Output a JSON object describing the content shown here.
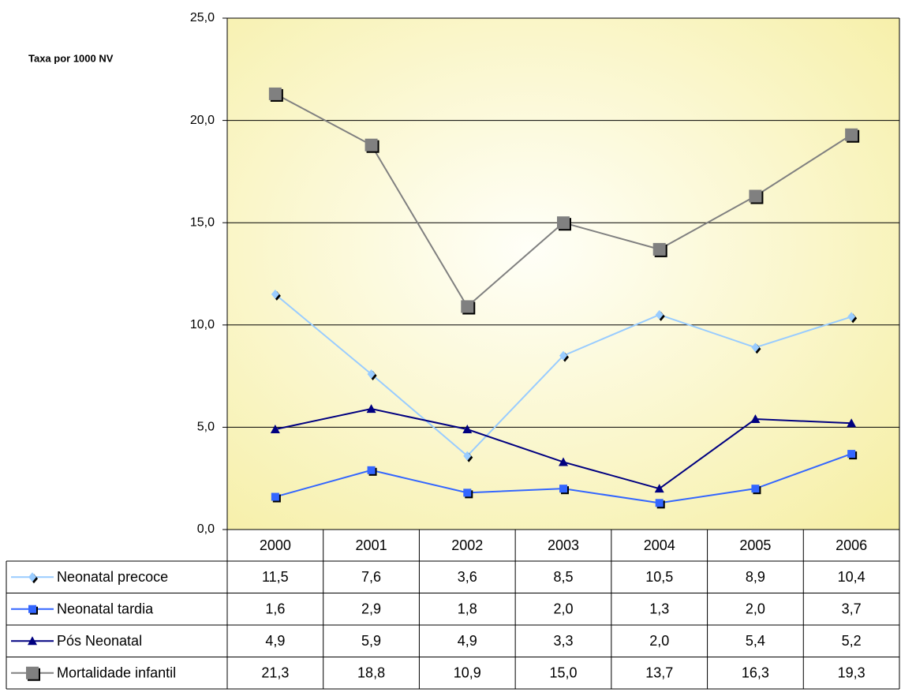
{
  "chart_data": {
    "type": "line",
    "y_label": "Taxa por 1000 NV",
    "categories": [
      "2000",
      "2001",
      "2002",
      "2003",
      "2004",
      "2005",
      "2006"
    ],
    "ylim": [
      0,
      25
    ],
    "yticks": [
      {
        "value": 0,
        "label": "0,0"
      },
      {
        "value": 5,
        "label": "5,0"
      },
      {
        "value": 10,
        "label": "10,0"
      },
      {
        "value": 15,
        "label": "15,0"
      },
      {
        "value": 20,
        "label": "20,0"
      },
      {
        "value": 25,
        "label": "25,0"
      }
    ],
    "grid": true,
    "series": [
      {
        "name": "Neonatal precoce",
        "color": "#99ccff",
        "marker": "diamond",
        "values": [
          11.5,
          7.6,
          3.6,
          8.5,
          10.5,
          8.9,
          10.4
        ],
        "value_labels": [
          "11,5",
          "7,6",
          "3,6",
          "8,5",
          "10,5",
          "8,9",
          "10,4"
        ]
      },
      {
        "name": "Neonatal tardia",
        "color": "#3366ff",
        "marker": "square",
        "values": [
          1.6,
          2.9,
          1.8,
          2.0,
          1.3,
          2.0,
          3.7
        ],
        "value_labels": [
          "1,6",
          "2,9",
          "1,8",
          "2,0",
          "1,3",
          "2,0",
          "3,7"
        ]
      },
      {
        "name": "Pós Neonatal",
        "color": "#000080",
        "marker": "triangle",
        "values": [
          4.9,
          5.9,
          4.9,
          3.3,
          2.0,
          5.4,
          5.2
        ],
        "value_labels": [
          "4,9",
          "5,9",
          "4,9",
          "3,3",
          "2,0",
          "5,4",
          "5,2"
        ]
      },
      {
        "name": "Mortalidade infantil",
        "color": "#808080",
        "marker": "bigsquare",
        "values": [
          21.3,
          18.8,
          10.9,
          15.0,
          13.7,
          16.3,
          19.3
        ],
        "value_labels": [
          "21,3",
          "18,8",
          "10,9",
          "15,0",
          "13,7",
          "16,3",
          "19,3"
        ]
      }
    ]
  }
}
